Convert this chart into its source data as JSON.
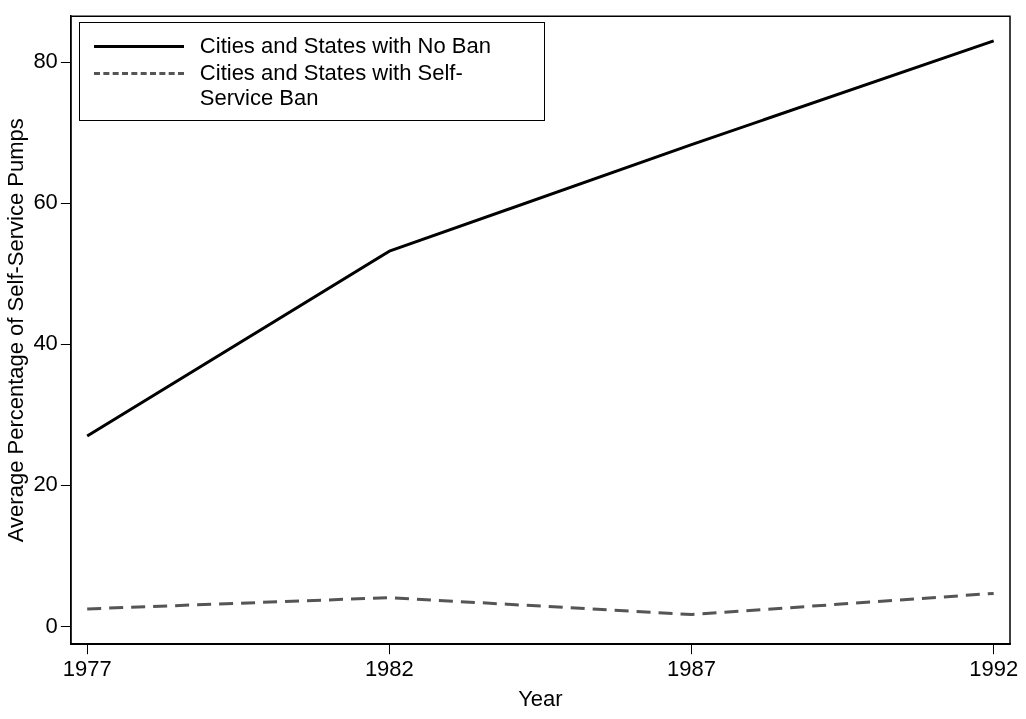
{
  "chart_data": {
    "type": "line",
    "xlabel": "Year",
    "ylabel": "Average Percentage of Self-Service Pumps",
    "x": [
      1977,
      1982,
      1987,
      1992
    ],
    "series": [
      {
        "name": "Cities and States with No Ban",
        "color": "#000000",
        "line_style": "solid",
        "values": [
          27,
          53.2,
          68.3,
          83
        ]
      },
      {
        "name": "Cities and States with Self-Service Ban",
        "color": "#555555",
        "line_style": "dashed",
        "values": [
          2.5,
          4.1,
          1.7,
          4.7
        ]
      }
    ],
    "xlim": [
      1976.73,
      1992.27
    ],
    "xticks": [
      1977,
      1982,
      1987,
      1992
    ],
    "ylim": [
      -2.5,
      86.5
    ],
    "yticks": [
      0,
      20,
      40,
      60,
      80
    ],
    "grid": false,
    "legend": "top left",
    "marker": "none"
  }
}
